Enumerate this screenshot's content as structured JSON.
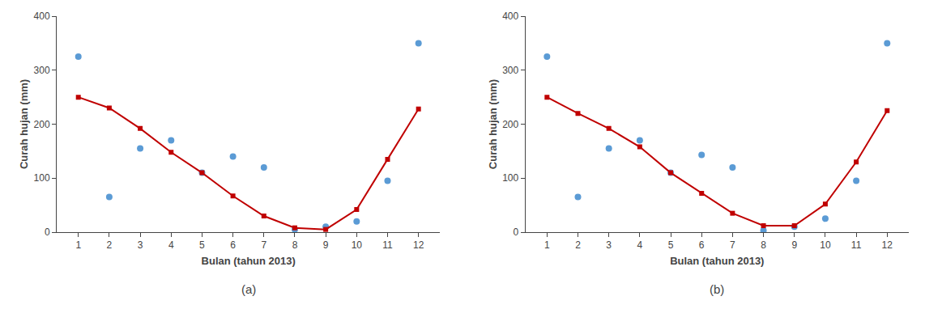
{
  "chart_data": [
    {
      "type": "line",
      "title": "(a)",
      "x": [
        1,
        2,
        3,
        4,
        5,
        6,
        7,
        8,
        9,
        10,
        11,
        12
      ],
      "xlabel": "Bulan (tahun 2013)",
      "ylabel": "Curah hujan (mm)",
      "series": [
        {
          "type": "scatter",
          "color": "#5b9bd5",
          "marker": "circle",
          "values": [
            325,
            65,
            155,
            170,
            110,
            140,
            120,
            5,
            10,
            20,
            95,
            350
          ]
        },
        {
          "type": "line",
          "color": "#c00000",
          "marker": "square",
          "line_style": "solid",
          "values": [
            250,
            230,
            192,
            148,
            110,
            67,
            30,
            8,
            5,
            42,
            135,
            228
          ]
        }
      ],
      "xlim": [
        0.3,
        12.7
      ],
      "xticks": [
        1,
        2,
        3,
        4,
        5,
        6,
        7,
        8,
        9,
        10,
        11,
        12
      ],
      "ylim": [
        0,
        400
      ],
      "yticks": [
        0,
        100,
        200,
        300,
        400
      ],
      "grid": false
    },
    {
      "type": "line",
      "title": "(b)",
      "x": [
        1,
        2,
        3,
        4,
        5,
        6,
        7,
        8,
        9,
        10,
        11,
        12
      ],
      "xlabel": "Bulan (tahun 2013)",
      "ylabel": "Curah hujan (mm)",
      "series": [
        {
          "type": "scatter",
          "color": "#5b9bd5",
          "marker": "circle",
          "values": [
            325,
            65,
            155,
            170,
            110,
            143,
            120,
            3,
            10,
            25,
            95,
            350
          ]
        },
        {
          "type": "line",
          "color": "#c00000",
          "marker": "square",
          "line_style": "solid",
          "values": [
            250,
            220,
            192,
            158,
            110,
            72,
            35,
            12,
            12,
            52,
            130,
            225
          ]
        }
      ],
      "xlim": [
        0.3,
        12.7
      ],
      "xticks": [
        1,
        2,
        3,
        4,
        5,
        6,
        7,
        8,
        9,
        10,
        11,
        12
      ],
      "ylim": [
        0,
        400
      ],
      "yticks": [
        0,
        100,
        200,
        300,
        400
      ],
      "grid": false
    }
  ]
}
